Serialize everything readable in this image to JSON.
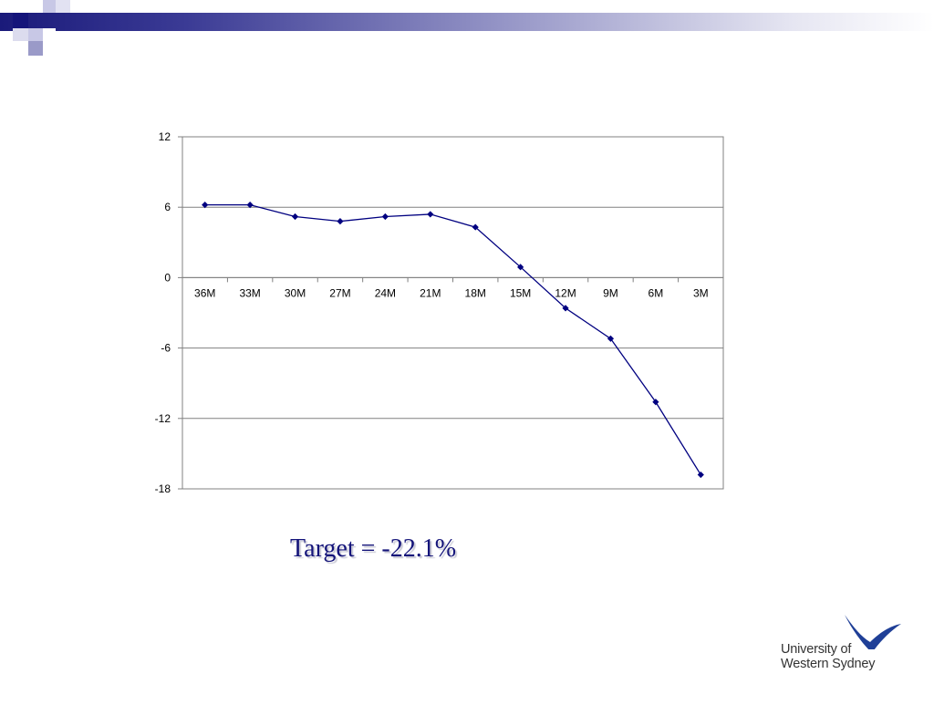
{
  "slide": {
    "caption": "Target = -22.1%",
    "accent_color": "#14147a",
    "logo": {
      "line1": "University of",
      "line2": "Western Sydney",
      "mark_color": "#1f3f97"
    }
  },
  "chart_data": {
    "type": "line",
    "categories": [
      "36M",
      "33M",
      "30M",
      "27M",
      "24M",
      "21M",
      "18M",
      "15M",
      "12M",
      "9M",
      "6M",
      "3M"
    ],
    "series": [
      {
        "values": [
          6.2,
          6.2,
          5.2,
          4.8,
          5.2,
          5.4,
          4.3,
          0.9,
          -2.6,
          -5.2,
          -10.6,
          -16.8
        ],
        "color": "#000080"
      }
    ],
    "y_ticks": [
      12,
      6,
      0,
      -6,
      -12,
      -18
    ],
    "ylim": [
      -18,
      12
    ],
    "grid": true,
    "title": "",
    "xlabel": "",
    "ylabel": ""
  }
}
